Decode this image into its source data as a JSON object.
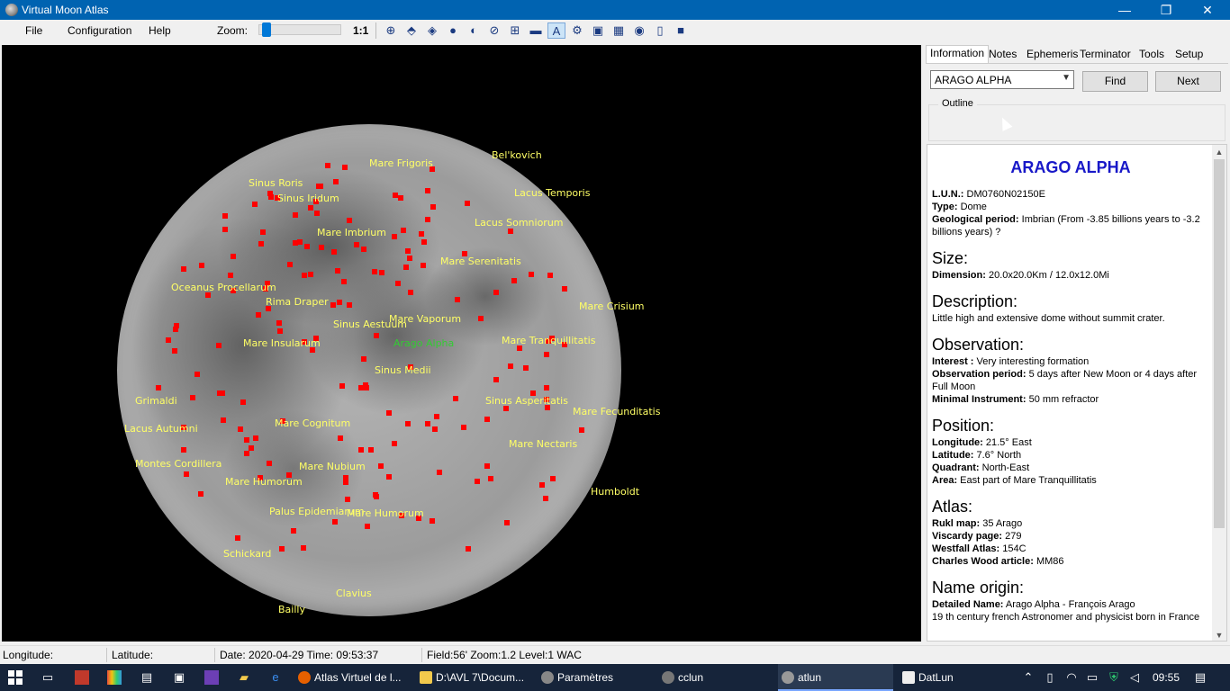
{
  "window": {
    "title": "Virtual Moon Atlas",
    "min": "—",
    "max": "❐",
    "close": "✕"
  },
  "menu": {
    "file": "File",
    "configuration": "Configuration",
    "help": "Help"
  },
  "toolbar": {
    "zoom_label": "Zoom:",
    "zoom_ratio": "1:1",
    "zoom_level": 0.05
  },
  "map": {
    "labels": [
      {
        "name": "Bel'kovich"
      },
      {
        "name": "Mare Frigoris"
      },
      {
        "name": "Sinus Roris"
      },
      {
        "name": "Sinus Iridum"
      },
      {
        "name": "Lacus Temporis"
      },
      {
        "name": "Lacus Somniorum"
      },
      {
        "name": "Mare Imbrium"
      },
      {
        "name": "Mare Serenitatis"
      },
      {
        "name": "Oceanus Procellarum"
      },
      {
        "name": "Rima Draper"
      },
      {
        "name": "Mare Crisium"
      },
      {
        "name": "Sinus Aestuum"
      },
      {
        "name": "Mare Vaporum"
      },
      {
        "name": "Mare Insularum"
      },
      {
        "name": "Arago Alpha"
      },
      {
        "name": "Mare Tranquillitatis"
      },
      {
        "name": "Sinus Medii"
      },
      {
        "name": "Grimaldi"
      },
      {
        "name": "Sinus Asperitatis"
      },
      {
        "name": "Mare Fecunditatis"
      },
      {
        "name": "Lacus Autumni"
      },
      {
        "name": "Mare Cognitum"
      },
      {
        "name": "Mare Nectaris"
      },
      {
        "name": "Montes Cordillera"
      },
      {
        "name": "Mare Nubium"
      },
      {
        "name": "Mare Humorum"
      },
      {
        "name": "Humboldt"
      },
      {
        "name": "Palus Epidemiarum"
      },
      {
        "name": "Mare Humorum"
      },
      {
        "name": "Schickard"
      },
      {
        "name": "Clavius"
      },
      {
        "name": "Bailly"
      }
    ]
  },
  "panel": {
    "tabs": [
      "Information",
      "Notes",
      "Ephemeris",
      "Terminator",
      "Tools",
      "Setup"
    ],
    "search_value": "ARAGO ALPHA",
    "find_label": "Find",
    "next_label": "Next",
    "outline_label": "Outline",
    "info": {
      "title": "ARAGO ALPHA",
      "lun_label": "L.U.N.:",
      "lun": " DM0760N02150E",
      "type_label": "Type:",
      "type": " Dome",
      "geo_label": "Geological period:",
      "geo": " Imbrian (From -3.85 billions years to -3.2 billions years) ?",
      "size_h": "Size:",
      "dim_label": "Dimension:",
      "dim": " 20.0x20.0Km / 12.0x12.0Mi",
      "desc_h": "Description:",
      "desc": "Little high and extensive dome without summit crater.",
      "obs_h": "Observation:",
      "interest_label": "Interest :",
      "interest": " Very interesting formation",
      "obsper_label": "Observation period:",
      "obsper": " 5 days after New Moon or 4 days after Full Moon",
      "instr_label": "Minimal Instrument:",
      "instr": " 50 mm refractor",
      "pos_h": "Position:",
      "lon_label": "Longitude:",
      "lon": " 21.5° East",
      "lat_label": "Latitude:",
      "lat": " 7.6° North",
      "quad_label": "Quadrant:",
      "quad": " North-East",
      "area_label": "Area:",
      "area": " East part of Mare Tranquillitatis",
      "atlas_h": "Atlas:",
      "rukl_label": "Rukl map:",
      "rukl": " 35 Arago",
      "viscardy_label": "Viscardy page:",
      "viscardy": "  279",
      "westfall_label": "Westfall Atlas:",
      "westfall": " 154C",
      "wood_label": "Charles Wood article:",
      "wood": " MM86",
      "name_h": "Name origin:",
      "detail_label": "Detailed Name:",
      "detail": " Arago  Alpha - François Arago",
      "detail2": "19 th century french Astronomer and physicist born in France"
    }
  },
  "status": {
    "longitude": "Longitude:",
    "latitude": "Latitude:",
    "datetime": "Date: 2020-04-29   Time: 09:53:37",
    "field": "Field:56' Zoom:1.2  Level:1 WAC"
  },
  "taskbar": {
    "tasks": [
      {
        "label": "Atlas Virtuel de l...",
        "color": "#e66000"
      },
      {
        "label": "D:\\AVL 7\\Docum...",
        "color": "#f2c94c"
      },
      {
        "label": "Paramètres",
        "color": "#888888"
      },
      {
        "label": "cclun",
        "color": "#777777"
      },
      {
        "label": "atlun",
        "color": "#999999"
      },
      {
        "label": "DatLun",
        "color": "#eeeeee"
      }
    ],
    "clock": "09:55"
  }
}
